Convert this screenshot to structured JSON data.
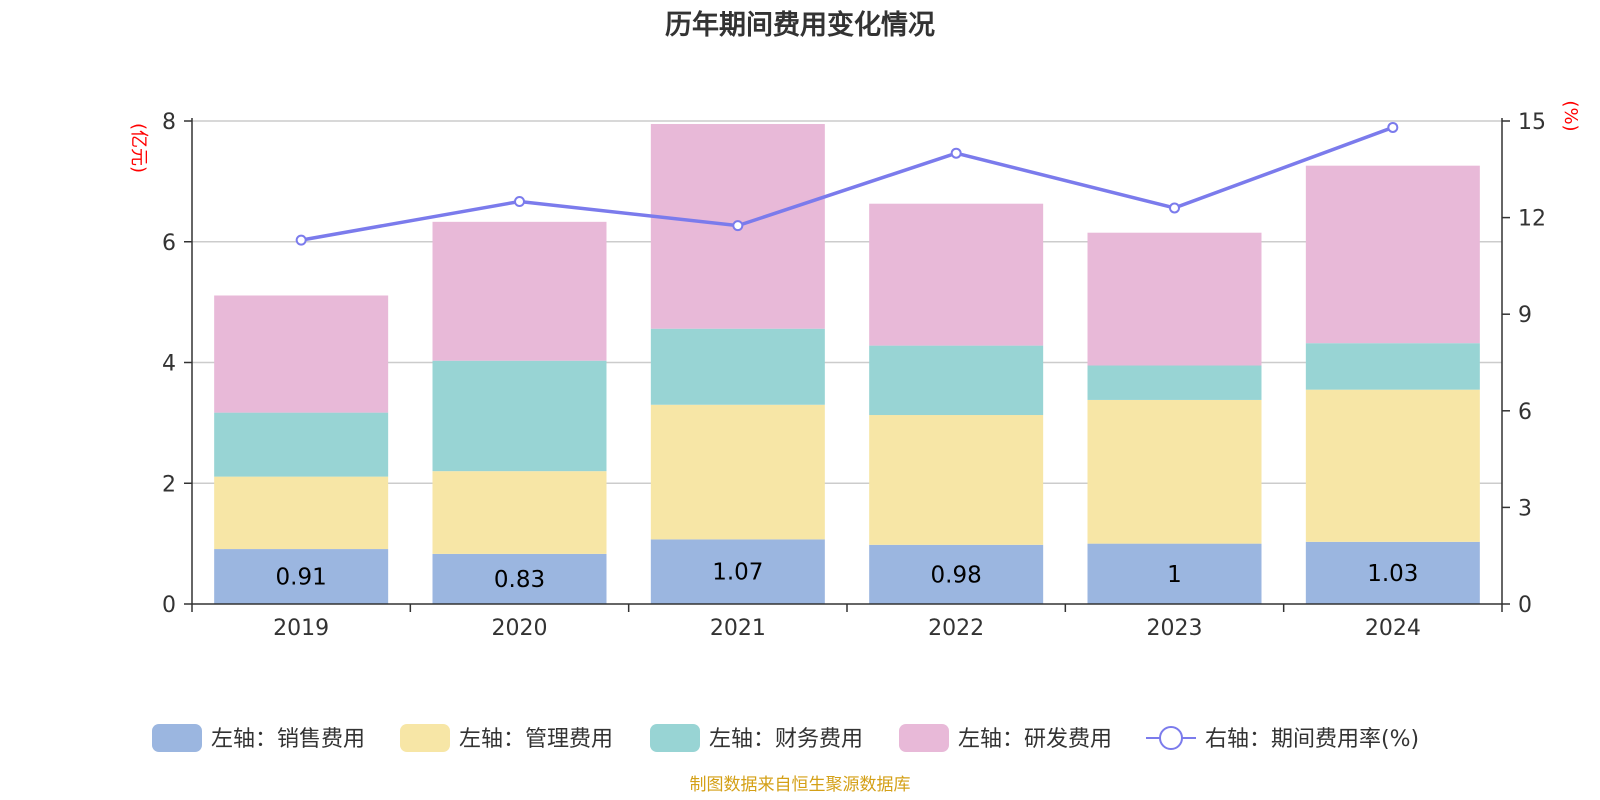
{
  "chart_data": {
    "type": "bar",
    "stacked": true,
    "title": "历年期间费用变化情况",
    "categories": [
      "2019",
      "2020",
      "2021",
      "2022",
      "2023",
      "2024"
    ],
    "left_axis": {
      "unit_label": "(亿元)",
      "ylim": [
        0,
        8
      ],
      "ticks": [
        "0",
        "2",
        "4",
        "6",
        "8"
      ]
    },
    "right_axis": {
      "unit_label": "(%)",
      "ylim": [
        0,
        15
      ],
      "ticks": [
        "0",
        "3",
        "6",
        "9",
        "12",
        "15"
      ]
    },
    "series": [
      {
        "name": "左轴：销售费用",
        "axis": "left",
        "color": "#9bb6e0",
        "values": [
          0.91,
          0.83,
          1.07,
          0.98,
          1,
          1.03
        ],
        "labels": [
          "0.91",
          "0.83",
          "1.07",
          "0.98",
          "1",
          "1.03"
        ]
      },
      {
        "name": "左轴：管理费用",
        "axis": "left",
        "color": "#f7e6a6",
        "values": [
          1.2,
          1.37,
          2.23,
          2.15,
          2.38,
          2.52
        ]
      },
      {
        "name": "左轴：财务费用",
        "axis": "left",
        "color": "#98d4d4",
        "values": [
          1.06,
          1.83,
          1.26,
          1.15,
          0.57,
          0.77
        ]
      },
      {
        "name": "左轴：研发费用",
        "axis": "left",
        "color": "#e8b9d8",
        "values": [
          1.94,
          2.3,
          3.39,
          2.35,
          2.2,
          2.94
        ]
      },
      {
        "name": "右轴：期间费用率(%)",
        "axis": "right",
        "type": "line",
        "color": "#7b7bec",
        "values": [
          11.3,
          12.5,
          11.75,
          14.0,
          12.3,
          14.8
        ]
      }
    ],
    "legend_position": "bottom",
    "grid": true
  },
  "footer": {
    "source": "制图数据来自恒生聚源数据库"
  }
}
